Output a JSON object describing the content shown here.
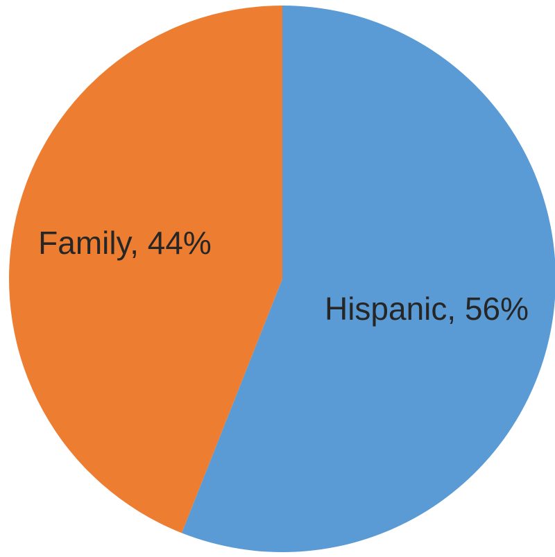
{
  "chart_data": {
    "type": "pie",
    "title": "",
    "start_angle_deg": 0,
    "direction": "clockwise",
    "slices": [
      {
        "label": "Hispanic",
        "value": 56,
        "display": "Hispanic, 56%",
        "color": "#5B9BD5"
      },
      {
        "label": "Family",
        "value": 44,
        "display": "Family, 44%",
        "color": "#ED7D31"
      }
    ],
    "legend": "none",
    "data_labels": "inside"
  }
}
